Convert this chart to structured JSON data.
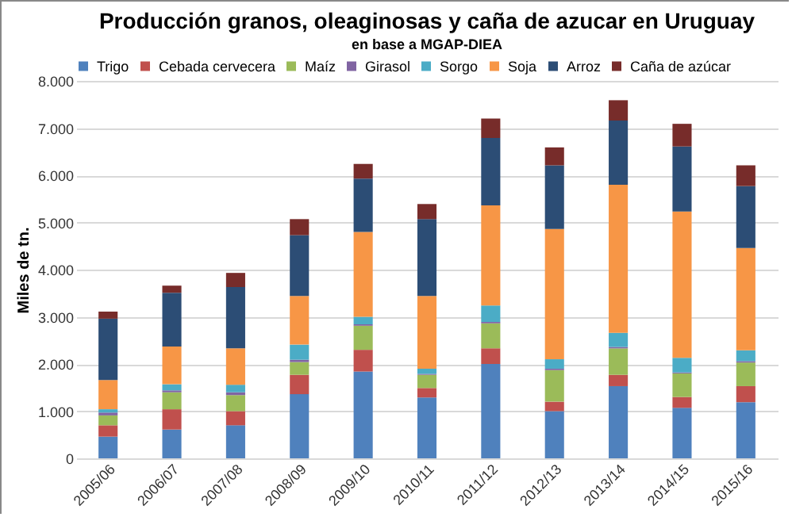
{
  "chart_data": {
    "type": "bar",
    "stacked": true,
    "title": "Producción granos, oleaginosas y caña de azucar en Uruguay",
    "subtitle": "en base a MGAP-DIEA",
    "ylabel": "Miles de tn.",
    "categories": [
      "2005/06",
      "2006/07",
      "2007/08",
      "2008/09",
      "2009/10",
      "2010/11",
      "2011/12",
      "2012/13",
      "2013/14",
      "2014/15",
      "2015/16"
    ],
    "series": [
      {
        "name": "Trigo",
        "color": "#4f81bd",
        "values": [
          460,
          610,
          700,
          1360,
          1840,
          1290,
          2000,
          1000,
          1530,
          1070,
          1190
        ]
      },
      {
        "name": "Cebada cervecera",
        "color": "#c0504d",
        "values": [
          240,
          430,
          300,
          410,
          460,
          200,
          330,
          200,
          240,
          230,
          340
        ]
      },
      {
        "name": "Maíz",
        "color": "#9bbb59",
        "values": [
          210,
          360,
          340,
          270,
          510,
          280,
          530,
          670,
          560,
          500,
          500
        ]
      },
      {
        "name": "Girasol",
        "color": "#8064a2",
        "values": [
          60,
          40,
          60,
          50,
          30,
          20,
          30,
          30,
          30,
          20,
          30
        ]
      },
      {
        "name": "Sorgo",
        "color": "#4bacc6",
        "values": [
          70,
          130,
          160,
          320,
          160,
          110,
          350,
          200,
          300,
          310,
          230
        ]
      },
      {
        "name": "Soja",
        "color": "#f79646",
        "values": [
          620,
          800,
          770,
          1030,
          1800,
          1540,
          2120,
          2760,
          3140,
          3100,
          2170
        ]
      },
      {
        "name": "Arroz",
        "color": "#2c4d75",
        "values": [
          1300,
          1140,
          1300,
          1290,
          1130,
          1630,
          1430,
          1350,
          1360,
          1380,
          1310
        ]
      },
      {
        "name": "Caña de azúcar",
        "color": "#772c2a",
        "values": [
          150,
          150,
          300,
          340,
          310,
          320,
          410,
          380,
          430,
          480,
          440
        ]
      }
    ],
    "ylim": [
      0,
      8000
    ],
    "yticks": [
      0,
      {
        "value": 1000,
        "label": "1.000"
      },
      {
        "value": 2000,
        "label": "2.000"
      },
      {
        "value": 3000,
        "label": "3.000"
      },
      {
        "value": 4000,
        "label": "4.000"
      },
      {
        "value": 5000,
        "label": "5.000"
      },
      {
        "value": 6000,
        "label": "6.000"
      },
      {
        "value": 7000,
        "label": "7.000"
      },
      {
        "value": 8000,
        "label": "8.000"
      }
    ],
    "grid": "y",
    "legend": "top"
  }
}
